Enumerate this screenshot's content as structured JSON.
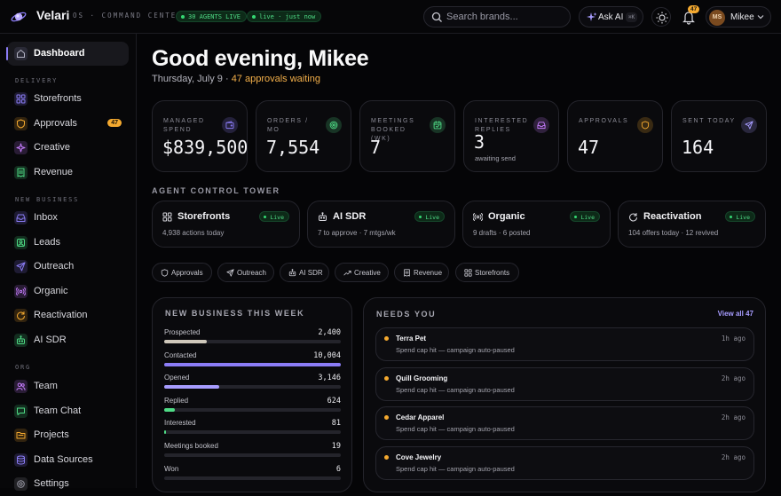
{
  "app": {
    "name": "Velari",
    "subtitle": "OS · COMMAND CENTER",
    "agents_live": "30 AGENTS LIVE",
    "live_status": "live · just now"
  },
  "topbar": {
    "search_placeholder": "Search brands...",
    "ask_ai": "Ask AI",
    "ask_ai_shortcut": "⌘K",
    "notif_count": "47",
    "user_initials": "MS",
    "user_name": "Mikee"
  },
  "sidebar": {
    "dashboard": "Dashboard",
    "sections": {
      "delivery": "DELIVERY",
      "new_business": "NEW BUSINESS",
      "org": "ORG"
    },
    "delivery": [
      {
        "label": "Storefronts",
        "icon": "grid-icon",
        "color": "#8b7cf6"
      },
      {
        "label": "Approvals",
        "icon": "shield-icon",
        "color": "#f4a92f",
        "badge": "47"
      },
      {
        "label": "Creative",
        "icon": "sparkle-icon",
        "color": "#c77dff"
      },
      {
        "label": "Revenue",
        "icon": "receipt-icon",
        "color": "#4fdc86"
      }
    ],
    "new_business": [
      {
        "label": "Inbox",
        "icon": "inbox-icon",
        "color": "#8b7cf6"
      },
      {
        "label": "Leads",
        "icon": "leads-icon",
        "color": "#4fdc86"
      },
      {
        "label": "Outreach",
        "icon": "send-icon",
        "color": "#8b7cf6"
      },
      {
        "label": "Organic",
        "icon": "broadcast-icon",
        "color": "#c77dff"
      },
      {
        "label": "Reactivation",
        "icon": "refresh-icon",
        "color": "#f4a92f"
      },
      {
        "label": "AI SDR",
        "icon": "bot-icon",
        "color": "#4fdc86"
      }
    ],
    "org": [
      {
        "label": "Team",
        "icon": "users-icon",
        "color": "#c77dff"
      },
      {
        "label": "Team Chat",
        "icon": "chat-icon",
        "color": "#4fdc86"
      },
      {
        "label": "Projects",
        "icon": "folder-icon",
        "color": "#f4a92f"
      },
      {
        "label": "Data Sources",
        "icon": "database-icon",
        "color": "#8b7cf6"
      },
      {
        "label": "Settings",
        "icon": "gear-icon",
        "color": "#9a9aa6"
      }
    ]
  },
  "header": {
    "greeting": "Good evening, Mikee",
    "date": "Thursday, July 9",
    "sep": "·",
    "approvals_waiting": "47 approvals waiting"
  },
  "stats": [
    {
      "label": "MANAGED SPEND",
      "value": "$839,500",
      "sub": "",
      "icon": "wallet-icon",
      "color": "#8b7cf6"
    },
    {
      "label": "ORDERS / MO",
      "value": "7,554",
      "sub": "",
      "icon": "target-icon",
      "color": "#4fdc86"
    },
    {
      "label": "MEETINGS BOOKED (WK)",
      "value": "7",
      "sub": "",
      "icon": "calendar-icon",
      "color": "#4fdc86"
    },
    {
      "label": "INTERESTED REPLIES",
      "value": "3",
      "sub": "awaiting send",
      "icon": "inbox-icon",
      "color": "#c77dff"
    },
    {
      "label": "APPROVALS",
      "value": "47",
      "sub": "",
      "icon": "shield-icon",
      "color": "#f4a92f"
    },
    {
      "label": "SENT TODAY",
      "value": "164",
      "sub": "",
      "icon": "send-icon",
      "color": "#a79cff"
    }
  ],
  "agent_tower": {
    "title": "AGENT CONTROL TOWER",
    "agents": [
      {
        "name": "Storefronts",
        "status": "Live",
        "desc": "4,938 actions today",
        "icon": "grid-icon"
      },
      {
        "name": "AI SDR",
        "status": "Live",
        "desc": "7 to approve · 7 mtgs/wk",
        "icon": "bot-icon"
      },
      {
        "name": "Organic",
        "status": "Live",
        "desc": "9 drafts · 6 posted",
        "icon": "broadcast-icon"
      },
      {
        "name": "Reactivation",
        "status": "Live",
        "desc": "104 offers today · 12 revived",
        "icon": "refresh-icon"
      }
    ]
  },
  "chips": [
    {
      "label": "Approvals",
      "icon": "shield-icon"
    },
    {
      "label": "Outreach",
      "icon": "send-icon"
    },
    {
      "label": "AI SDR",
      "icon": "bot-icon"
    },
    {
      "label": "Creative",
      "icon": "trend-icon"
    },
    {
      "label": "Revenue",
      "icon": "receipt-icon"
    },
    {
      "label": "Storefronts",
      "icon": "grid-icon"
    }
  ],
  "new_business": {
    "title": "NEW BUSINESS THIS WEEK",
    "rows": [
      {
        "label": "Prospected",
        "value": "2,400",
        "fraction": 0.24,
        "color": "#cfc8bb"
      },
      {
        "label": "Contacted",
        "value": "10,004",
        "fraction": 1.0,
        "color": "#8b7cf6"
      },
      {
        "label": "Opened",
        "value": "3,146",
        "fraction": 0.31,
        "color": "#a79cff"
      },
      {
        "label": "Replied",
        "value": "624",
        "fraction": 0.06,
        "color": "#4fdc86"
      },
      {
        "label": "Interested",
        "value": "81",
        "fraction": 0.01,
        "color": "#4fdc86"
      },
      {
        "label": "Meetings booked",
        "value": "19",
        "fraction": 0.0,
        "color": "#4fdc86"
      },
      {
        "label": "Won",
        "value": "6",
        "fraction": 0.0,
        "color": "#4fdc86"
      }
    ]
  },
  "needs_you": {
    "title": "NEEDS YOU",
    "view_all": "View all 47",
    "items": [
      {
        "name": "Terra Pet",
        "desc": "Spend cap hit — campaign auto-paused",
        "time": "1h ago"
      },
      {
        "name": "Quill Grooming",
        "desc": "Spend cap hit — campaign auto-paused",
        "time": "2h ago"
      },
      {
        "name": "Cedar Apparel",
        "desc": "Spend cap hit — campaign auto-paused",
        "time": "2h ago"
      },
      {
        "name": "Cove Jewelry",
        "desc": "Spend cap hit — campaign auto-paused",
        "time": "2h ago"
      }
    ]
  }
}
